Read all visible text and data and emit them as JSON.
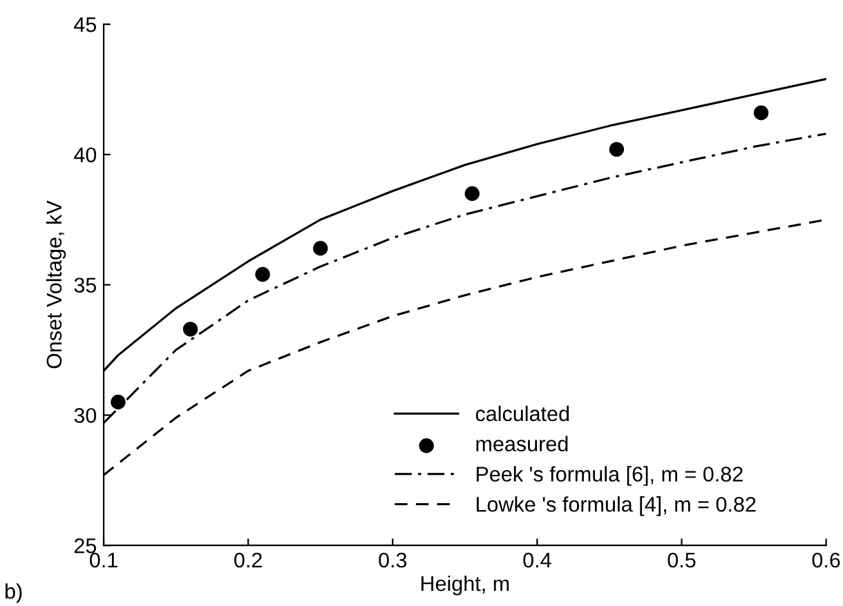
{
  "chart_data": {
    "type": "line",
    "xlabel": "Height, m",
    "ylabel": "Onset Voltage, kV",
    "xlim": [
      0.1,
      0.6
    ],
    "ylim": [
      25,
      45
    ],
    "xticks": [
      0.1,
      0.2,
      0.3,
      0.4,
      0.5,
      0.6
    ],
    "yticks": [
      25,
      30,
      35,
      40,
      45
    ],
    "grid": false,
    "legend": "bottom right",
    "annotations": [
      "b)"
    ],
    "series": [
      {
        "name": "calculated",
        "color": "#000000",
        "line_style": "solid",
        "x": [
          0.1,
          0.11,
          0.15,
          0.2,
          0.25,
          0.3,
          0.35,
          0.4,
          0.45,
          0.5,
          0.55,
          0.6
        ],
        "values": [
          31.7,
          32.3,
          34.1,
          35.9,
          37.5,
          38.6,
          39.6,
          40.4,
          41.1,
          41.7,
          42.3,
          42.9
        ]
      },
      {
        "name": "measured",
        "type": "scatter",
        "color": "#000000",
        "marker": "circle",
        "x": [
          0.11,
          0.16,
          0.21,
          0.25,
          0.355,
          0.455,
          0.555
        ],
        "values": [
          30.5,
          33.3,
          35.4,
          36.4,
          38.5,
          40.2,
          41.6
        ]
      },
      {
        "name": "Peek 's formula [6], m = 0.82",
        "color": "#000000",
        "line_style": "dashdot",
        "x": [
          0.1,
          0.15,
          0.2,
          0.25,
          0.3,
          0.35,
          0.4,
          0.45,
          0.5,
          0.55,
          0.6
        ],
        "values": [
          29.7,
          32.5,
          34.4,
          35.7,
          36.8,
          37.7,
          38.4,
          39.1,
          39.7,
          40.3,
          40.8
        ]
      },
      {
        "name": "Lowke 's formula [4], m = 0.82",
        "color": "#000000",
        "line_style": "dashed",
        "x": [
          0.1,
          0.15,
          0.2,
          0.25,
          0.3,
          0.35,
          0.4,
          0.45,
          0.5,
          0.55,
          0.6
        ],
        "values": [
          27.7,
          29.9,
          31.7,
          32.8,
          33.8,
          34.6,
          35.3,
          35.9,
          36.5,
          37.0,
          37.5
        ]
      }
    ]
  }
}
